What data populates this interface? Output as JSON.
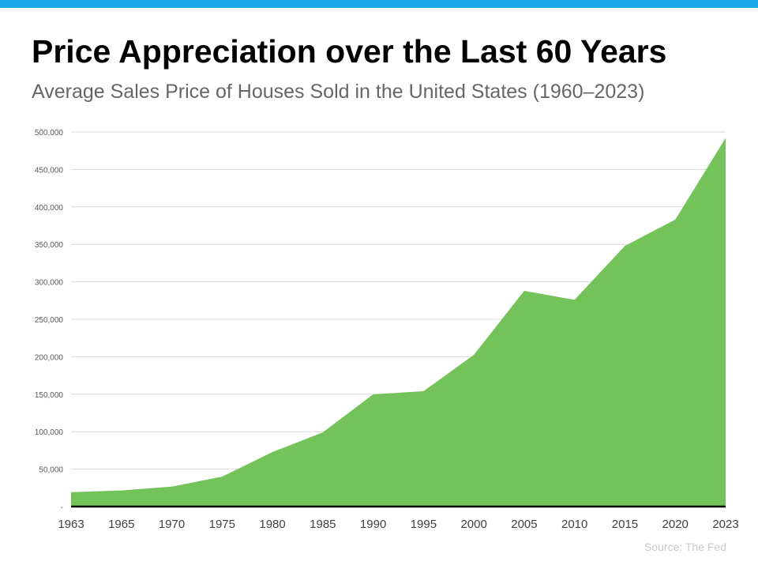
{
  "title": "Price Appreciation over the Last 60 Years",
  "subtitle": "Average Sales Price of Houses Sold in the United States (1960–2023)",
  "source": "Source: The Fed",
  "colors": {
    "accent_bar": "#1aa9e8",
    "area_fill": "#73c25a",
    "grid": "#d9d9d9",
    "axis": "#000000"
  },
  "chart_data": {
    "type": "area",
    "title": "Price Appreciation over the Last 60 Years",
    "xlabel": "",
    "ylabel": "",
    "categories": [
      "1963",
      "1965",
      "1970",
      "1975",
      "1980",
      "1985",
      "1990",
      "1995",
      "2000",
      "2005",
      "2010",
      "2015",
      "2020",
      "2023"
    ],
    "values": [
      19300,
      21500,
      26600,
      40000,
      72800,
      99000,
      149800,
      154000,
      202500,
      288000,
      276000,
      348000,
      383000,
      492000
    ],
    "ylim": [
      0,
      500000
    ],
    "yticks": [
      0,
      50000,
      100000,
      150000,
      200000,
      250000,
      300000,
      350000,
      400000,
      450000,
      500000
    ],
    "ytick_labels": [
      "-",
      "50,000",
      "100,000",
      "150,000",
      "200,000",
      "250,000",
      "300,000",
      "350,000",
      "400,000",
      "450,000",
      "500,000"
    ],
    "grid": true,
    "legend": "none"
  }
}
